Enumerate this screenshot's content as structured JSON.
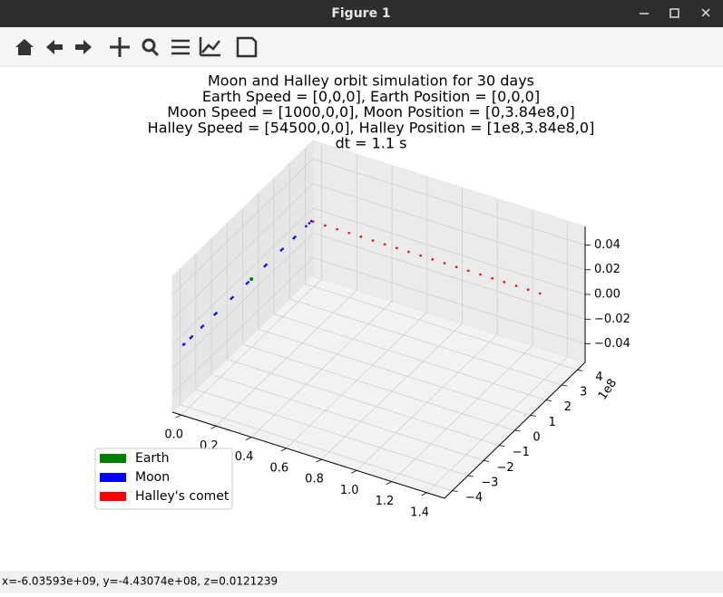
{
  "window": {
    "title": "Figure 1"
  },
  "status_bar": "x=-6.03593e+09, y=-4.43074e+08, z=0.0121239",
  "chart_data": {
    "type": "scatter3d",
    "title": [
      "Moon and Halley orbit simulation for 30 days",
      "Earth Speed = [0,0,0], Earth Position = [0,0,0]",
      "Moon Speed = [1000,0,0], Moon Position = [0,3.84e8,0]",
      "Halley Speed = [54500,0,0], Halley Position = [1e8,3.84e8,0]",
      "dt = 1.1 s"
    ],
    "series": [
      {
        "name": "Earth",
        "color": "#008000",
        "x": [
          0
        ],
        "y": [
          0
        ],
        "z": [
          0
        ]
      },
      {
        "name": "Moon",
        "color": "#0000ff",
        "x": [
          0,
          0,
          0,
          0,
          0,
          0,
          0,
          0,
          0,
          0,
          0,
          0,
          0,
          0,
          0,
          0,
          0,
          0,
          0,
          0,
          0
        ],
        "y": [
          3.84,
          3.7,
          3.5,
          2.8,
          2.7,
          2.0,
          1.9,
          0.95,
          0.85,
          -0.2,
          -0.3,
          -1.2,
          -1.3,
          -2.25,
          -2.35,
          -3.1,
          -3.2,
          -3.8,
          -3.9,
          -4.3,
          -4.35
        ],
        "z": [
          0,
          0,
          0,
          0,
          0,
          0,
          0,
          0,
          0,
          0,
          0,
          0,
          0,
          0,
          0,
          0,
          0,
          0,
          0,
          0,
          0
        ]
      },
      {
        "name": "Halley's comet",
        "color": "#ff0000",
        "x": [
          0.01,
          0.078,
          0.146,
          0.214,
          0.282,
          0.35,
          0.418,
          0.486,
          0.554,
          0.622,
          0.69,
          0.758,
          0.826,
          0.894,
          0.962,
          1.03,
          1.098,
          1.166,
          1.234,
          1.302
        ],
        "y": [
          3.84,
          3.84,
          3.84,
          3.84,
          3.84,
          3.84,
          3.84,
          3.84,
          3.84,
          3.84,
          3.84,
          3.84,
          3.84,
          3.84,
          3.84,
          3.84,
          3.84,
          3.84,
          3.84,
          3.84
        ],
        "z": [
          0,
          0,
          0,
          0,
          0,
          0,
          0,
          0,
          0,
          0,
          0,
          0,
          0,
          0,
          0,
          0,
          0,
          0,
          0,
          0
        ]
      }
    ],
    "xlim": [
      -0.05,
      1.5
    ],
    "ylim": [
      -4.5,
      4.5
    ],
    "zlim": [
      -0.055,
      0.055
    ],
    "xticks": [
      {
        "value": 0,
        "label": "0.0"
      },
      0.2,
      0.4,
      0.6,
      0.8,
      {
        "value": 1,
        "label": "1.0"
      },
      1.2,
      1.4
    ],
    "yticks": [
      {
        "value": -4,
        "label": "−4"
      },
      {
        "value": -3,
        "label": "−3"
      },
      {
        "value": -2,
        "label": "−2"
      },
      {
        "value": -1,
        "label": "−1"
      },
      0,
      1,
      2,
      3,
      4
    ],
    "zticks": [
      {
        "value": -0.04,
        "label": "−0.04"
      },
      {
        "value": -0.02,
        "label": "−0.02"
      },
      {
        "value": 0,
        "label": "0.00"
      },
      0.02,
      0.04
    ],
    "y_offset_label": "1e8",
    "grid": true
  }
}
